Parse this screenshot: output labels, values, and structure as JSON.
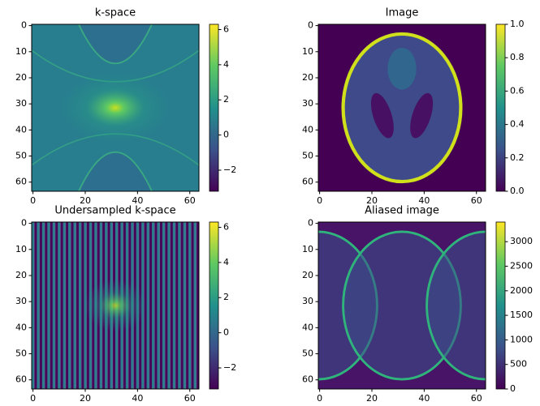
{
  "chart_data": [
    {
      "type": "image",
      "title": "k-space",
      "colormap": "viridis",
      "xlim": [
        -0.5,
        63.5
      ],
      "ylim": [
        63.5,
        -0.5
      ],
      "xticks": [
        0,
        20,
        40,
        60
      ],
      "yticks": [
        0,
        10,
        20,
        30,
        40,
        50,
        60
      ],
      "clim": [
        -3.2,
        6.3
      ],
      "cticks": [
        {
          "value": -2,
          "label": "−2"
        },
        0,
        2,
        4,
        6
      ]
    },
    {
      "type": "image",
      "title": "Image",
      "colormap": "viridis",
      "xlim": [
        -0.5,
        63.5
      ],
      "ylim": [
        63.5,
        -0.5
      ],
      "xticks": [
        0,
        20,
        40,
        60
      ],
      "yticks": [
        0,
        10,
        20,
        30,
        40,
        50,
        60
      ],
      "clim": [
        0,
        1
      ],
      "cticks": [
        {
          "value": 0,
          "label": "0.0"
        },
        {
          "value": 0.2,
          "label": "0.2"
        },
        {
          "value": 0.4,
          "label": "0.4"
        },
        {
          "value": 0.6,
          "label": "0.6"
        },
        {
          "value": 0.8,
          "label": "0.8"
        },
        {
          "value": 1,
          "label": "1.0"
        }
      ]
    },
    {
      "type": "image",
      "title": "Undersampled k-space",
      "colormap": "viridis",
      "xlim": [
        -0.5,
        63.5
      ],
      "ylim": [
        63.5,
        -0.5
      ],
      "xticks": [
        0,
        20,
        40,
        60
      ],
      "yticks": [
        0,
        10,
        20,
        30,
        40,
        50,
        60
      ],
      "clim": [
        -3.2,
        6.3
      ],
      "cticks": [
        {
          "value": -2,
          "label": "−2"
        },
        0,
        2,
        4,
        6
      ]
    },
    {
      "type": "image",
      "title": "Aliased image",
      "colormap": "viridis",
      "xlim": [
        -0.5,
        63.5
      ],
      "ylim": [
        63.5,
        -0.5
      ],
      "xticks": [
        0,
        20,
        40,
        60
      ],
      "yticks": [
        0,
        10,
        20,
        30,
        40,
        50,
        60
      ],
      "clim": [
        0,
        3400
      ],
      "cticks": [
        0,
        500,
        1000,
        1500,
        2000,
        2500,
        3000
      ]
    }
  ]
}
